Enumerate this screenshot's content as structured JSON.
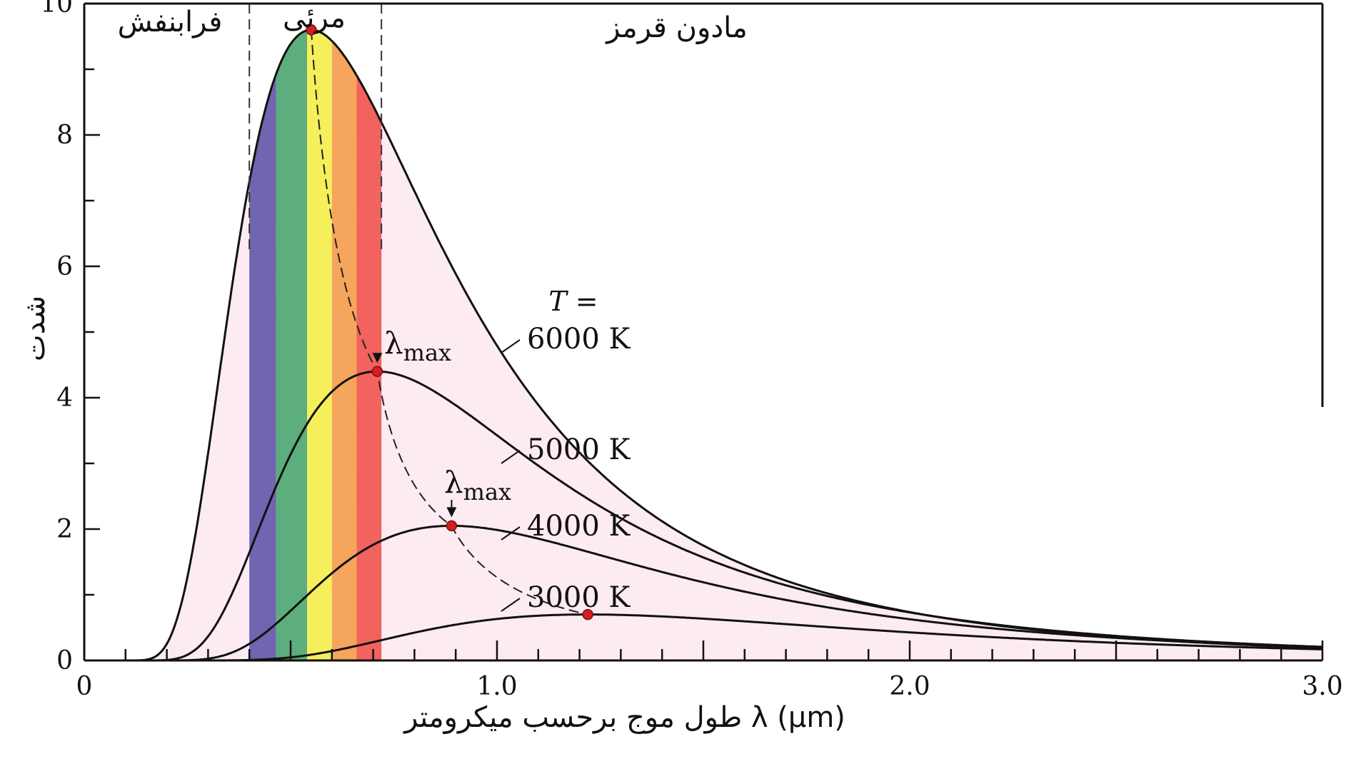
{
  "chart_data": {
    "type": "line",
    "title": "",
    "xlabel": "طول موج برحسب میکرومتر  λ  (μm)",
    "ylabel": "شدت",
    "xlim": [
      0,
      3.0
    ],
    "ylim": [
      0,
      10
    ],
    "x_ticks": [
      0,
      1.0,
      2.0,
      3.0
    ],
    "x_tick_labels": [
      "0",
      "1.0",
      "2.0",
      "3.0"
    ],
    "y_ticks": [
      0,
      2,
      4,
      6,
      8,
      10
    ],
    "y_tick_labels": [
      "0",
      "2",
      "4",
      "6",
      "8",
      "10"
    ],
    "temperature_label": "T =",
    "series": [
      {
        "name": "6000 K",
        "temperature": 6000,
        "peak_x": 0.55,
        "peak_y": 9.6
      },
      {
        "name": "5000 K",
        "temperature": 5000,
        "peak_x": 0.71,
        "peak_y": 4.4
      },
      {
        "name": "4000 K",
        "temperature": 4000,
        "peak_x": 0.89,
        "peak_y": 2.05
      },
      {
        "name": "3000 K",
        "temperature": 3000,
        "peak_x": 1.22,
        "peak_y": 0.7
      }
    ],
    "regions": [
      {
        "label": "فرابنفش",
        "range": [
          0,
          0.4
        ]
      },
      {
        "label": "مرئی",
        "range": [
          0.4,
          0.72
        ]
      },
      {
        "label": "مادون قرمز",
        "range": [
          0.72,
          3.0
        ]
      }
    ],
    "region_boundaries": [
      0.4,
      0.72
    ],
    "visible_bands": [
      {
        "from": 0.4,
        "to": 0.465,
        "color": "#6f65b0"
      },
      {
        "from": 0.465,
        "to": 0.54,
        "color": "#5cae7c"
      },
      {
        "from": 0.54,
        "to": 0.6,
        "color": "#f4ef5a"
      },
      {
        "from": 0.6,
        "to": 0.66,
        "color": "#f5a55c"
      },
      {
        "from": 0.66,
        "to": 0.72,
        "color": "#f2625e"
      }
    ],
    "annotations": [
      {
        "text": "λmax",
        "target_series": "5000 K"
      },
      {
        "text": "λmax",
        "target_series": "4000 K"
      }
    ],
    "colors": {
      "fill": "#fcebf2",
      "curve": "#111111",
      "peak_marker": "#d21f1f"
    },
    "grid": false,
    "legend": "inline curve labels"
  }
}
